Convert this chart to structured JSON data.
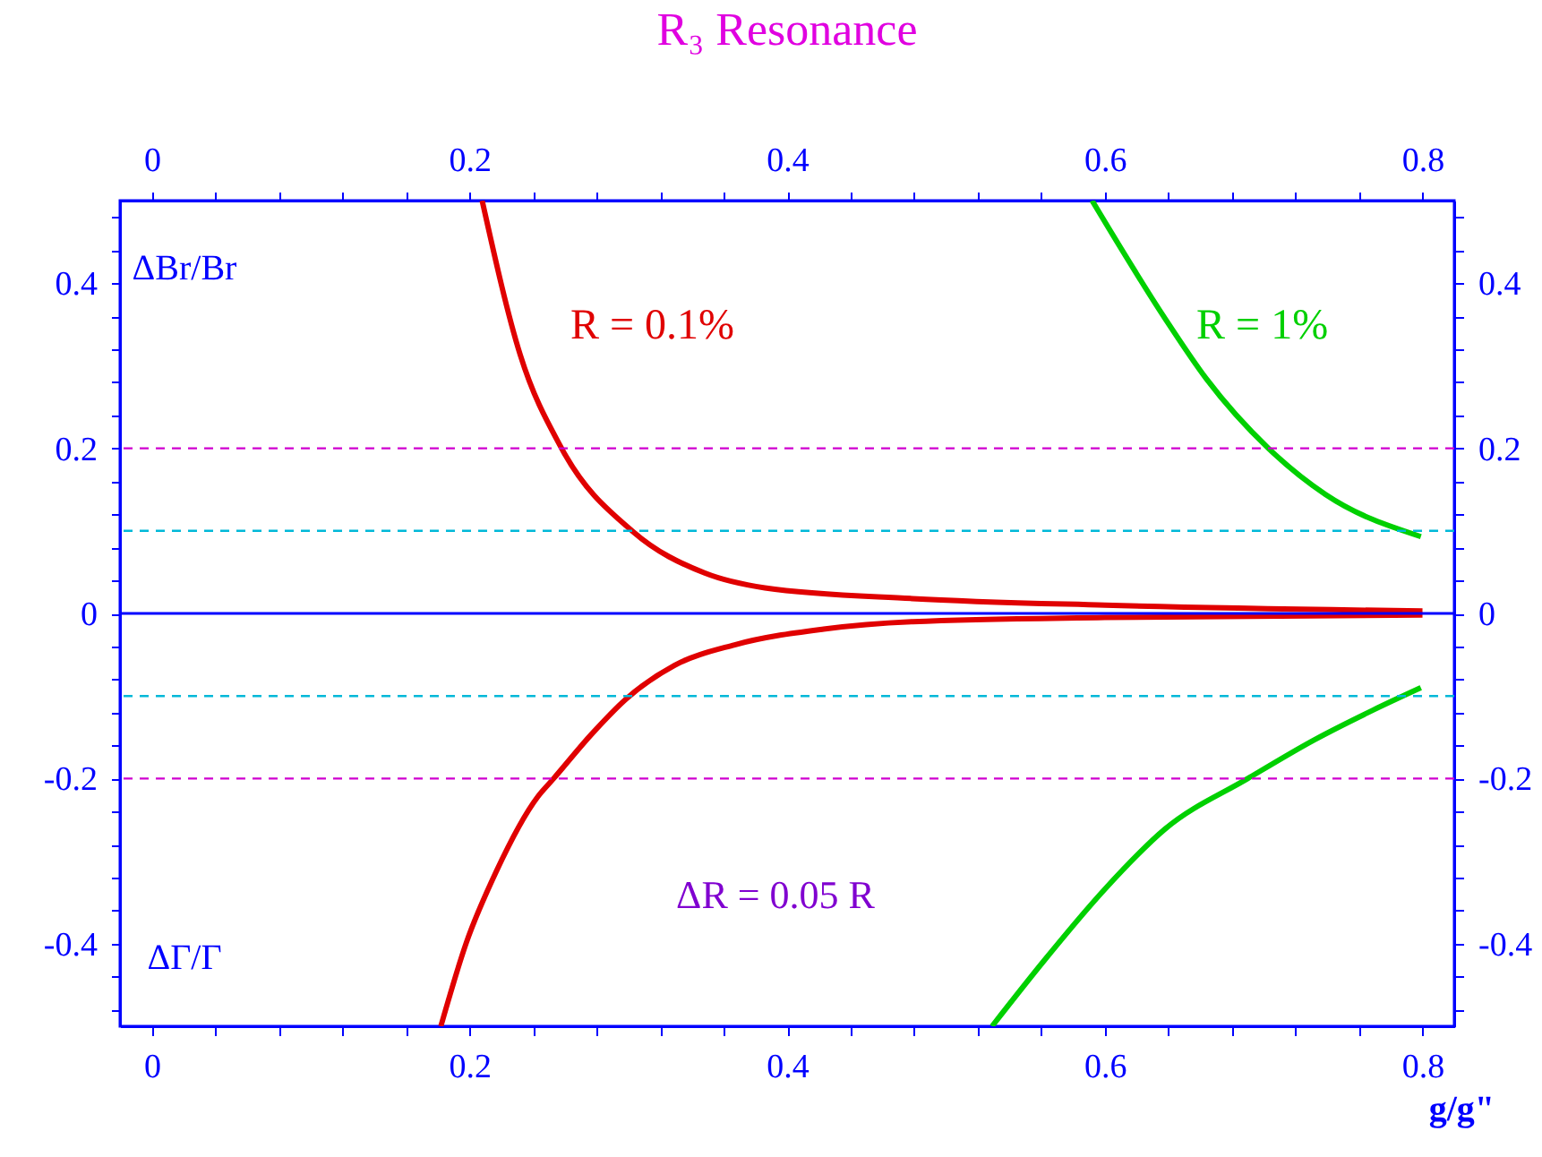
{
  "chart_data": {
    "type": "line",
    "title": "R₃ Resonance",
    "xlabel": "g/g\"",
    "xlim": [
      -0.02,
      0.82
    ],
    "ylim": [
      -0.5,
      0.5
    ],
    "x2lim": [
      -0.02,
      0.82
    ],
    "y2lim": [
      -0.5,
      0.5
    ],
    "xticks": [
      0,
      0.2,
      0.4,
      0.6,
      0.8,
      {
        "value": 0.04,
        "label": null
      },
      {
        "value": 0.08,
        "label": null
      },
      {
        "value": 0.12,
        "label": null
      },
      {
        "value": 0.16,
        "label": null
      },
      {
        "value": 0.24,
        "label": null
      },
      {
        "value": 0.28,
        "label": null
      },
      {
        "value": 0.32,
        "label": null
      },
      {
        "value": 0.36,
        "label": null
      },
      {
        "value": 0.44,
        "label": null
      },
      {
        "value": 0.48,
        "label": null
      },
      {
        "value": 0.52,
        "label": null
      },
      {
        "value": 0.56,
        "label": null
      },
      {
        "value": 0.64,
        "label": null
      },
      {
        "value": 0.68,
        "label": null
      },
      {
        "value": 0.72,
        "label": null
      },
      {
        "value": 0.76,
        "label": null
      }
    ],
    "x2ticks": [
      0,
      0.2,
      0.4,
      0.6,
      0.8,
      {
        "value": 0.04,
        "label": null
      },
      {
        "value": 0.08,
        "label": null
      },
      {
        "value": 0.12,
        "label": null
      },
      {
        "value": 0.16,
        "label": null
      },
      {
        "value": 0.24,
        "label": null
      },
      {
        "value": 0.28,
        "label": null
      },
      {
        "value": 0.32,
        "label": null
      },
      {
        "value": 0.36,
        "label": null
      },
      {
        "value": 0.44,
        "label": null
      },
      {
        "value": 0.48,
        "label": null
      },
      {
        "value": 0.52,
        "label": null
      },
      {
        "value": 0.56,
        "label": null
      },
      {
        "value": 0.64,
        "label": null
      },
      {
        "value": 0.68,
        "label": null
      },
      {
        "value": 0.72,
        "label": null
      },
      {
        "value": 0.76,
        "label": null
      }
    ],
    "yticks": [
      -0.4,
      -0.2,
      0,
      0.2,
      0.4,
      {
        "value": -0.48,
        "label": null
      },
      {
        "value": -0.44,
        "label": null
      },
      {
        "value": -0.36,
        "label": null
      },
      {
        "value": -0.32,
        "label": null
      },
      {
        "value": -0.28,
        "label": null
      },
      {
        "value": -0.24,
        "label": null
      },
      {
        "value": -0.16,
        "label": null
      },
      {
        "value": -0.12,
        "label": null
      },
      {
        "value": -0.08,
        "label": null
      },
      {
        "value": -0.04,
        "label": null
      },
      {
        "value": 0.04,
        "label": null
      },
      {
        "value": 0.08,
        "label": null
      },
      {
        "value": 0.12,
        "label": null
      },
      {
        "value": 0.16,
        "label": null
      },
      {
        "value": 0.24,
        "label": null
      },
      {
        "value": 0.28,
        "label": null
      },
      {
        "value": 0.32,
        "label": null
      },
      {
        "value": 0.36,
        "label": null
      },
      {
        "value": 0.44,
        "label": null
      },
      {
        "value": 0.48,
        "label": null
      }
    ],
    "y2ticks": [
      -0.4,
      -0.2,
      0,
      0.2,
      0.4,
      {
        "value": -0.48,
        "label": null
      },
      {
        "value": -0.44,
        "label": null
      },
      {
        "value": -0.36,
        "label": null
      },
      {
        "value": -0.32,
        "label": null
      },
      {
        "value": -0.28,
        "label": null
      },
      {
        "value": -0.24,
        "label": null
      },
      {
        "value": -0.16,
        "label": null
      },
      {
        "value": -0.12,
        "label": null
      },
      {
        "value": -0.08,
        "label": null
      },
      {
        "value": -0.04,
        "label": null
      },
      {
        "value": 0.04,
        "label": null
      },
      {
        "value": 0.08,
        "label": null
      },
      {
        "value": 0.12,
        "label": null
      },
      {
        "value": 0.16,
        "label": null
      },
      {
        "value": 0.24,
        "label": null
      },
      {
        "value": 0.28,
        "label": null
      },
      {
        "value": 0.32,
        "label": null
      },
      {
        "value": 0.36,
        "label": null
      },
      {
        "value": 0.44,
        "label": null
      },
      {
        "value": 0.48,
        "label": null
      }
    ],
    "grid": false,
    "marker": "none",
    "line_style": "solid",
    "series": [
      {
        "name": "R = 0.1%",
        "color": "#e00000",
        "x": [
          0.208,
          0.232,
          0.258,
          0.303,
          0.348,
          0.386,
          0.479,
          0.6,
          0.8
        ],
        "values": [
          0.5,
          0.313,
          0.2,
          0.099,
          0.049,
          0.031,
          0.018,
          0.01,
          0.003
        ]
      },
      {
        "color": "#e00000",
        "x": [
          0.182,
          0.198,
          0.217,
          0.243,
          0.253,
          0.277,
          0.299,
          0.329,
          0.367,
          0.423,
          0.479,
          0.6,
          0.8
        ],
        "values": [
          -0.5,
          -0.399,
          -0.312,
          -0.222,
          -0.2,
          -0.146,
          -0.103,
          -0.063,
          -0.038,
          -0.019,
          -0.01,
          -0.005,
          -0.002
        ]
      },
      {
        "name": "R = 1%",
        "color": "#00d000",
        "x": [
          0.592,
          0.638,
          0.664,
          0.703,
          0.739,
          0.799
        ],
        "values": [
          0.5,
          0.357,
          0.284,
          0.2,
          0.144,
          0.093
        ]
      },
      {
        "color": "#00d000",
        "x": [
          0.529,
          0.562,
          0.6,
          0.638,
          0.69,
          0.732,
          0.769,
          0.799
        ],
        "values": [
          -0.5,
          -0.42,
          -0.334,
          -0.261,
          -0.2,
          -0.153,
          -0.117,
          -0.09
        ]
      }
    ],
    "ref_lines": [
      {
        "axis": "y",
        "value": 0,
        "color": "#0000ff",
        "line_style": "solid"
      },
      {
        "axis": "y",
        "value": 0.2,
        "color": "#d000d0",
        "line_style": "dashed"
      },
      {
        "axis": "y",
        "value": -0.2,
        "color": "#d000d0",
        "line_style": "dashed"
      },
      {
        "axis": "y",
        "value": 0.1,
        "color": "#00b8d8",
        "line_style": "dashed"
      },
      {
        "axis": "y",
        "value": -0.1,
        "color": "#00b8d8",
        "line_style": "dashed"
      }
    ],
    "annotations": [
      "ΔBr/Br",
      "ΔΓ/Γ",
      "ΔR = 0.05 R"
    ]
  }
}
